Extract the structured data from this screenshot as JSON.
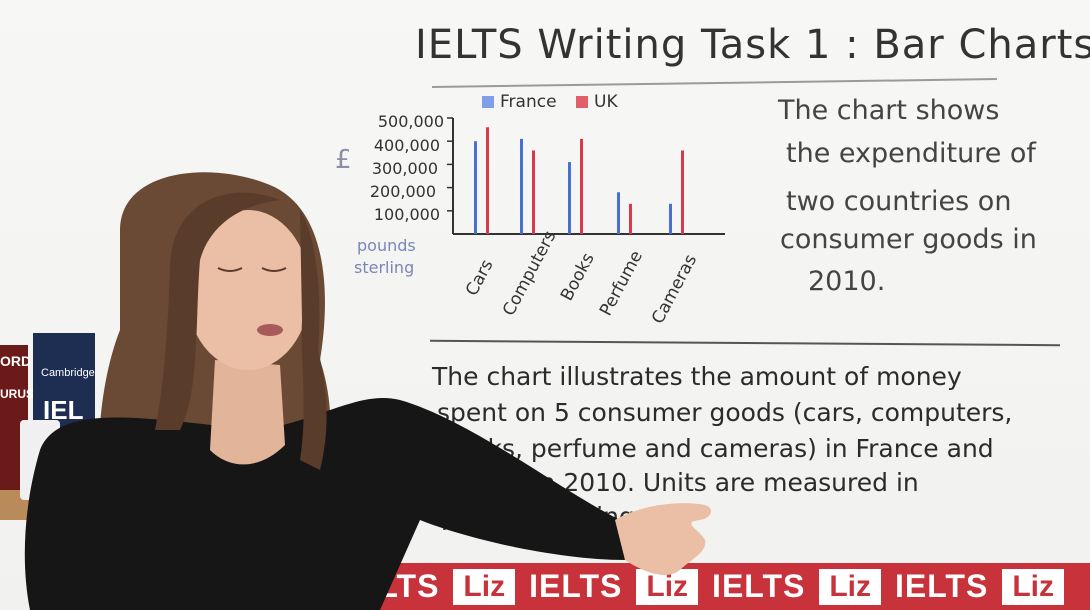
{
  "title": "IELTS Writing Task 1 : Bar Charts",
  "description_lines": [
    "The chart shows",
    "the expenditure of",
    "two countries on",
    "consumer goods in",
    "2010."
  ],
  "paragraph_lines": [
    "The chart illustrates the amount of money",
    "spent on 5 consumer goods (cars, computers,",
    "books, perfume and cameras) in France and",
    "the UK in 2010. Units are measured in",
    "pounds sterling"
  ],
  "chart_data": {
    "type": "bar",
    "title": "",
    "categories": [
      "Cars",
      "Computers",
      "Books",
      "Perfume",
      "Cameras"
    ],
    "series": [
      {
        "name": "France",
        "color": "#4a6fd0",
        "values": [
          400000,
          410000,
          310000,
          180000,
          130000
        ]
      },
      {
        "name": "UK",
        "color": "#d83a4a",
        "values": [
          460000,
          360000,
          410000,
          130000,
          360000
        ]
      }
    ],
    "yticks": [
      "500,000",
      "400,000",
      "300,000",
      "200,000",
      "100,000"
    ],
    "ylim": [
      0,
      500000
    ],
    "ylabel_symbol": "£",
    "ylabel_text": [
      "pounds",
      "sterling"
    ],
    "xlabel": ""
  },
  "banner": {
    "words": [
      "ELTS",
      "Liz",
      "IELTS",
      "Liz",
      "IELTS",
      "Liz",
      "IELTS",
      "Liz"
    ]
  },
  "books": {
    "spine1": "ORD",
    "spine2": "URUS",
    "spine3": "Cambridge",
    "spine4": "IEL"
  }
}
